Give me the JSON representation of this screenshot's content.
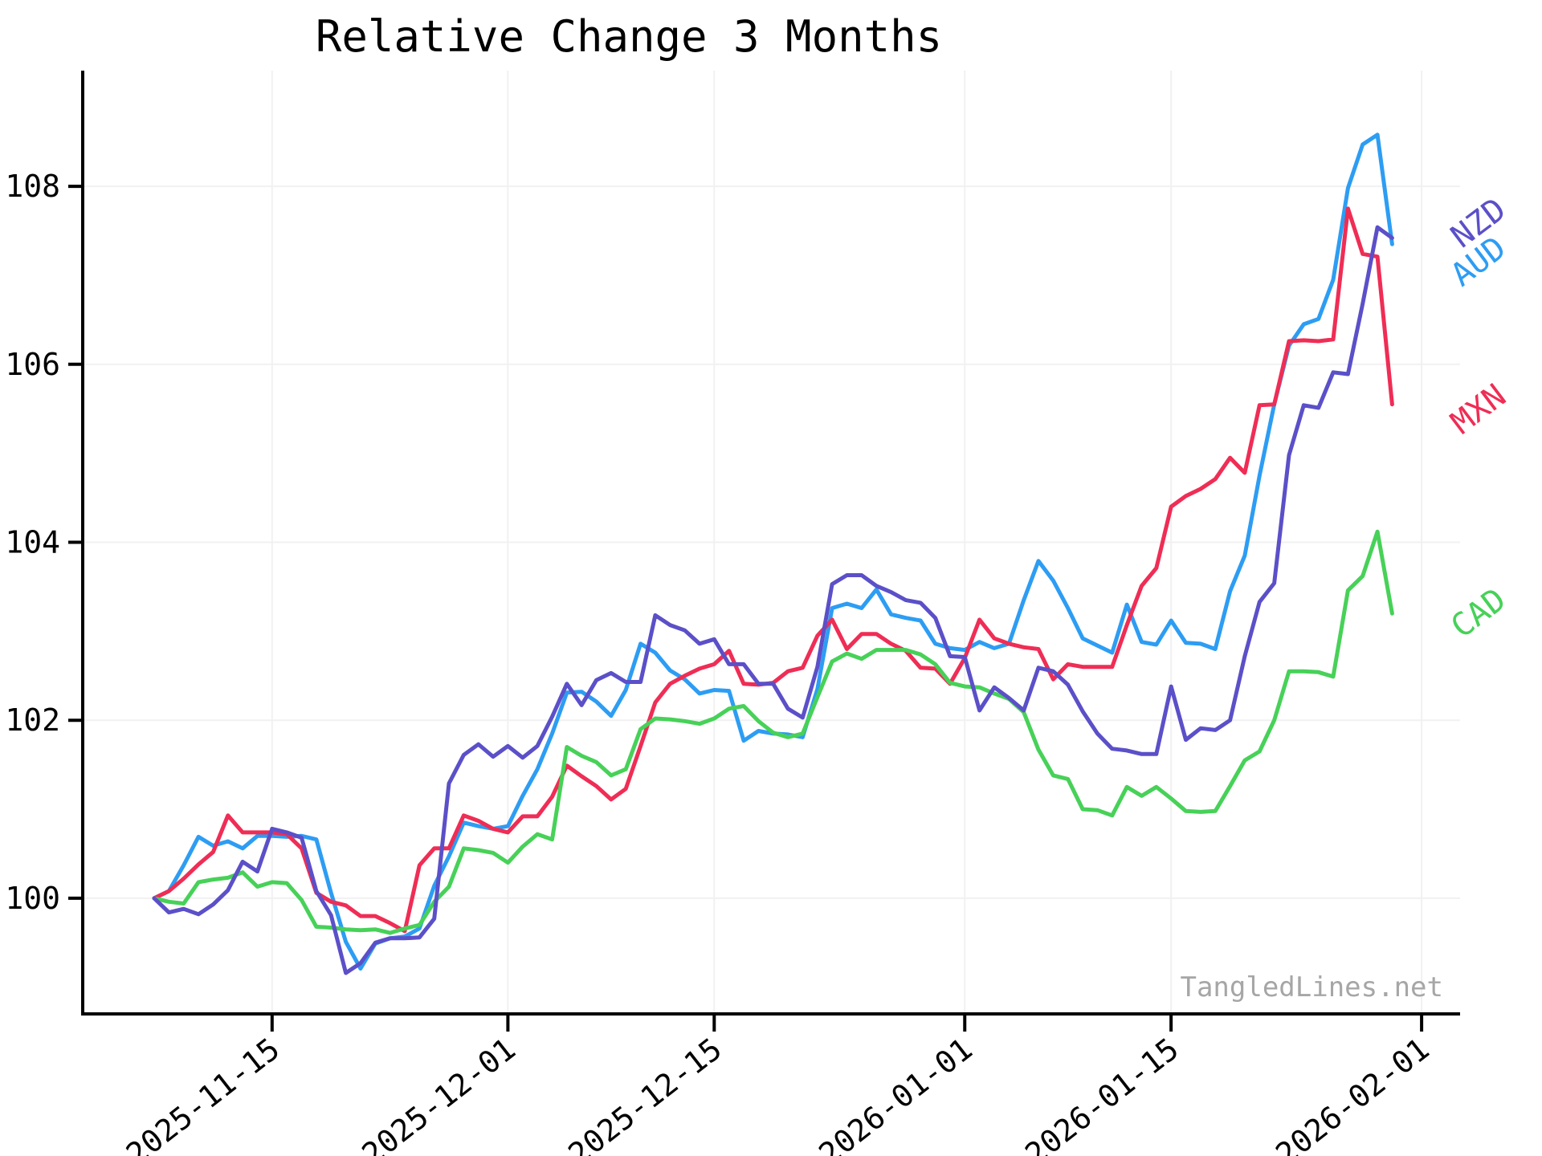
{
  "chart_data": {
    "type": "line",
    "title": "Relative Change 3 Months",
    "watermark": "TangledLines.net",
    "grid": true,
    "legend_position": "right-of-plot-at-line-ends",
    "ylim": [
      98.7,
      109.3
    ],
    "y_ticks": [
      100,
      102,
      104,
      106,
      108
    ],
    "x_ticks": [
      "2025-11-15",
      "2025-12-01",
      "2025-12-15",
      "2026-01-01",
      "2026-01-15",
      "2026-02-01"
    ],
    "xlabel": "",
    "ylabel": "",
    "dates": [
      "2025-11-07",
      "2025-11-08",
      "2025-11-09",
      "2025-11-10",
      "2025-11-11",
      "2025-11-12",
      "2025-11-13",
      "2025-11-14",
      "2025-11-15",
      "2025-11-16",
      "2025-11-17",
      "2025-11-18",
      "2025-11-19",
      "2025-11-20",
      "2025-11-21",
      "2025-11-22",
      "2025-11-23",
      "2025-11-24",
      "2025-11-25",
      "2025-11-26",
      "2025-11-27",
      "2025-11-28",
      "2025-11-29",
      "2025-11-30",
      "2025-12-01",
      "2025-12-02",
      "2025-12-03",
      "2025-12-04",
      "2025-12-05",
      "2025-12-06",
      "2025-12-07",
      "2025-12-08",
      "2025-12-09",
      "2025-12-10",
      "2025-12-11",
      "2025-12-12",
      "2025-12-13",
      "2025-12-14",
      "2025-12-15",
      "2025-12-16",
      "2025-12-17",
      "2025-12-18",
      "2025-12-19",
      "2025-12-20",
      "2025-12-21",
      "2025-12-22",
      "2025-12-23",
      "2025-12-24",
      "2025-12-25",
      "2025-12-26",
      "2025-12-27",
      "2025-12-28",
      "2025-12-29",
      "2025-12-30",
      "2025-12-31",
      "2026-01-01",
      "2026-01-02",
      "2026-01-03",
      "2026-01-04",
      "2026-01-05",
      "2026-01-06",
      "2026-01-07",
      "2026-01-08",
      "2026-01-09",
      "2026-01-10",
      "2026-01-11",
      "2026-01-12",
      "2026-01-13",
      "2026-01-14",
      "2026-01-15",
      "2026-01-16",
      "2026-01-17",
      "2026-01-18",
      "2026-01-19",
      "2026-01-20",
      "2026-01-21",
      "2026-01-22",
      "2026-01-23",
      "2026-01-24",
      "2026-01-25",
      "2026-01-26",
      "2026-01-27",
      "2026-01-28",
      "2026-01-29",
      "2026-01-30"
    ],
    "series": [
      {
        "name": "AUD",
        "color": "#2d9df3",
        "values": [
          100.0,
          100.08,
          100.37,
          100.69,
          100.59,
          100.64,
          100.56,
          100.7,
          100.7,
          100.69,
          100.7,
          100.66,
          100.06,
          99.51,
          99.21,
          99.49,
          99.55,
          99.57,
          99.66,
          100.14,
          100.47,
          100.85,
          100.81,
          100.78,
          100.81,
          101.15,
          101.45,
          101.85,
          102.31,
          102.32,
          102.21,
          102.05,
          102.34,
          102.86,
          102.76,
          102.56,
          102.46,
          102.3,
          102.34,
          102.33,
          101.77,
          101.88,
          101.85,
          101.84,
          101.81,
          102.35,
          103.26,
          103.31,
          103.26,
          103.47,
          103.19,
          103.15,
          103.12,
          102.86,
          102.81,
          102.79,
          102.88,
          102.81,
          102.86,
          103.35,
          103.79,
          103.57,
          103.26,
          102.92,
          102.84,
          102.76,
          103.3,
          102.88,
          102.85,
          103.12,
          102.87,
          102.86,
          102.8,
          103.45,
          103.85,
          104.75,
          105.55,
          106.21,
          106.45,
          106.51,
          106.95,
          107.98,
          108.47,
          108.58,
          107.35
        ]
      },
      {
        "name": "MXN",
        "color": "#ef2d55",
        "values": [
          100.0,
          100.08,
          100.22,
          100.38,
          100.52,
          100.93,
          100.74,
          100.74,
          100.74,
          100.72,
          100.56,
          100.06,
          99.96,
          99.92,
          99.8,
          99.8,
          99.72,
          99.63,
          100.37,
          100.56,
          100.56,
          100.93,
          100.87,
          100.78,
          100.74,
          100.92,
          100.92,
          101.14,
          101.49,
          101.37,
          101.26,
          101.11,
          101.23,
          101.71,
          102.2,
          102.41,
          102.5,
          102.58,
          102.63,
          102.78,
          102.41,
          102.4,
          102.42,
          102.55,
          102.59,
          102.95,
          103.13,
          102.8,
          102.97,
          102.97,
          102.86,
          102.78,
          102.59,
          102.58,
          102.41,
          102.7,
          103.13,
          102.92,
          102.86,
          102.82,
          102.8,
          102.46,
          102.63,
          102.6,
          102.6,
          102.6,
          103.07,
          103.51,
          103.71,
          104.4,
          104.52,
          104.6,
          104.71,
          104.95,
          104.78,
          105.54,
          105.55,
          106.26,
          106.27,
          106.26,
          106.28,
          107.75,
          107.24,
          107.21,
          105.55
        ]
      },
      {
        "name": "CAD",
        "color": "#47d158",
        "values": [
          100.0,
          99.96,
          99.94,
          100.18,
          100.21,
          100.23,
          100.29,
          100.13,
          100.18,
          100.17,
          99.98,
          99.68,
          99.67,
          99.65,
          99.64,
          99.65,
          99.61,
          99.66,
          99.7,
          99.96,
          100.13,
          100.56,
          100.54,
          100.51,
          100.4,
          100.58,
          100.72,
          100.66,
          101.7,
          101.6,
          101.53,
          101.38,
          101.45,
          101.9,
          102.02,
          102.01,
          101.99,
          101.96,
          102.02,
          102.13,
          102.16,
          101.99,
          101.86,
          101.81,
          101.85,
          102.26,
          102.66,
          102.75,
          102.69,
          102.79,
          102.79,
          102.79,
          102.74,
          102.63,
          102.42,
          102.38,
          102.37,
          102.3,
          102.24,
          102.09,
          101.67,
          101.38,
          101.34,
          101.0,
          100.99,
          100.93,
          101.25,
          101.15,
          101.25,
          101.12,
          100.98,
          100.97,
          100.98,
          101.26,
          101.55,
          101.65,
          102.0,
          102.55,
          102.55,
          102.54,
          102.49,
          103.46,
          103.62,
          104.12,
          103.2
        ]
      },
      {
        "name": "NZD",
        "color": "#5b50c8",
        "values": [
          100.0,
          99.84,
          99.88,
          99.82,
          99.93,
          100.09,
          100.41,
          100.3,
          100.78,
          100.74,
          100.68,
          100.08,
          99.81,
          99.16,
          99.27,
          99.5,
          99.55,
          99.55,
          99.56,
          99.77,
          101.29,
          101.61,
          101.73,
          101.59,
          101.71,
          101.58,
          101.71,
          102.04,
          102.41,
          102.17,
          102.45,
          102.53,
          102.43,
          102.43,
          103.18,
          103.07,
          103.01,
          102.86,
          102.91,
          102.63,
          102.63,
          102.41,
          102.41,
          102.13,
          102.03,
          102.6,
          103.53,
          103.63,
          103.63,
          103.51,
          103.44,
          103.35,
          103.32,
          103.15,
          102.72,
          102.71,
          102.11,
          102.37,
          102.25,
          102.11,
          102.59,
          102.55,
          102.4,
          102.1,
          101.85,
          101.68,
          101.66,
          101.62,
          101.62,
          102.38,
          101.78,
          101.91,
          101.89,
          102.0,
          102.72,
          103.33,
          103.54,
          104.98,
          105.54,
          105.51,
          105.91,
          105.89,
          106.68,
          107.54,
          107.42
        ]
      }
    ]
  }
}
